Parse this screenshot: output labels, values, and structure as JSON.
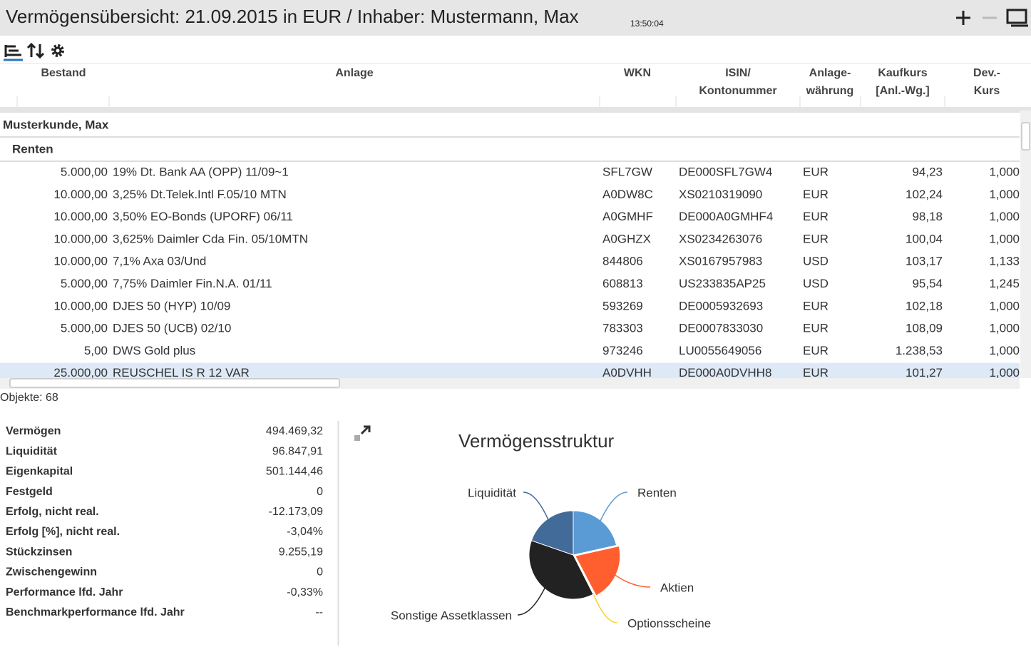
{
  "header": {
    "title": "Vermögensübersicht: 21.09.2015 in EUR / Inhaber: Mustermann, Max",
    "time": "13:50:04"
  },
  "table": {
    "columns": [
      [
        "Bestand"
      ],
      [
        "Anlage"
      ],
      [
        "WKN"
      ],
      [
        "ISIN/",
        "Kontonummer"
      ],
      [
        "Anlage-",
        "währung"
      ],
      [
        "Kaufkurs",
        "[Anl.-Wg.]"
      ],
      [
        "Dev.-",
        "Kurs"
      ]
    ],
    "group": "Musterkunde, Max",
    "subgroup": "Renten",
    "rows": [
      [
        "5.000,00",
        "19% Dt. Bank AA (OPP) 11/09~1",
        "SFL7GW",
        "DE000SFL7GW4",
        "EUR",
        "94,23",
        "1,000"
      ],
      [
        "10.000,00",
        "3,25% Dt.Telek.Intl F.05/10 MTN",
        "A0DW8C",
        "XS0210319090",
        "EUR",
        "102,24",
        "1,000"
      ],
      [
        "10.000,00",
        "3,50% EO-Bonds (UPORF) 06/11",
        "A0GMHF",
        "DE000A0GMHF4",
        "EUR",
        "98,18",
        "1,000"
      ],
      [
        "10.000,00",
        "3,625% Daimler Cda Fin. 05/10MTN",
        "A0GHZX",
        "XS0234263076",
        "EUR",
        "100,04",
        "1,000"
      ],
      [
        "10.000,00",
        "7,1% Axa 03/Und",
        "844806",
        "XS0167957983",
        "USD",
        "103,17",
        "1,133"
      ],
      [
        "5.000,00",
        "7,75% Daimler Fin.N.A. 01/11",
        "608813",
        "US233835AP25",
        "USD",
        "95,54",
        "1,245"
      ],
      [
        "10.000,00",
        "DJES 50 (HYP) 10/09",
        "593269",
        "DE0005932693",
        "EUR",
        "102,18",
        "1,000"
      ],
      [
        "5.000,00",
        "DJES 50 (UCB) 02/10",
        "783303",
        "DE0007833030",
        "EUR",
        "108,09",
        "1,000"
      ],
      [
        "5,00",
        "DWS Gold plus",
        "973246",
        "LU0055649056",
        "EUR",
        "1.238,53",
        "1,000"
      ],
      [
        "25.000,00",
        "REUSCHEL IS R 12 VAR",
        "A0DVHH",
        "DE000A0DVHH8",
        "EUR",
        "101,27",
        "1,000"
      ]
    ]
  },
  "status": "Objekte: 68",
  "summary": [
    [
      "Vermögen",
      "494.469,32"
    ],
    [
      "Liquidität",
      "96.847,91"
    ],
    [
      "Eigenkapital",
      "501.144,46"
    ],
    [
      "Festgeld",
      "0"
    ],
    [
      "Erfolg, nicht real.",
      "-12.173,09"
    ],
    [
      "Erfolg [%], nicht real.",
      "-3,04%"
    ],
    [
      "Stückzinsen",
      "9.255,19"
    ],
    [
      "Zwischengewinn",
      "0"
    ],
    [
      "Performance lfd. Jahr",
      "-0,33%"
    ],
    [
      "Benchmarkperformance lfd. Jahr",
      "--"
    ]
  ],
  "chart_data": {
    "type": "pie",
    "title": "Vermögensstruktur",
    "categories": [
      "Renten",
      "Aktien",
      "Optionsscheine",
      "Sonstige Assetklassen",
      "Liquidität"
    ],
    "values": [
      21.5,
      20.8,
      0.2,
      37.8,
      19.7
    ],
    "colors": [
      "#5b9bd5",
      "#ff5f2e",
      "#f5d33a",
      "#222222",
      "#436b99"
    ]
  }
}
